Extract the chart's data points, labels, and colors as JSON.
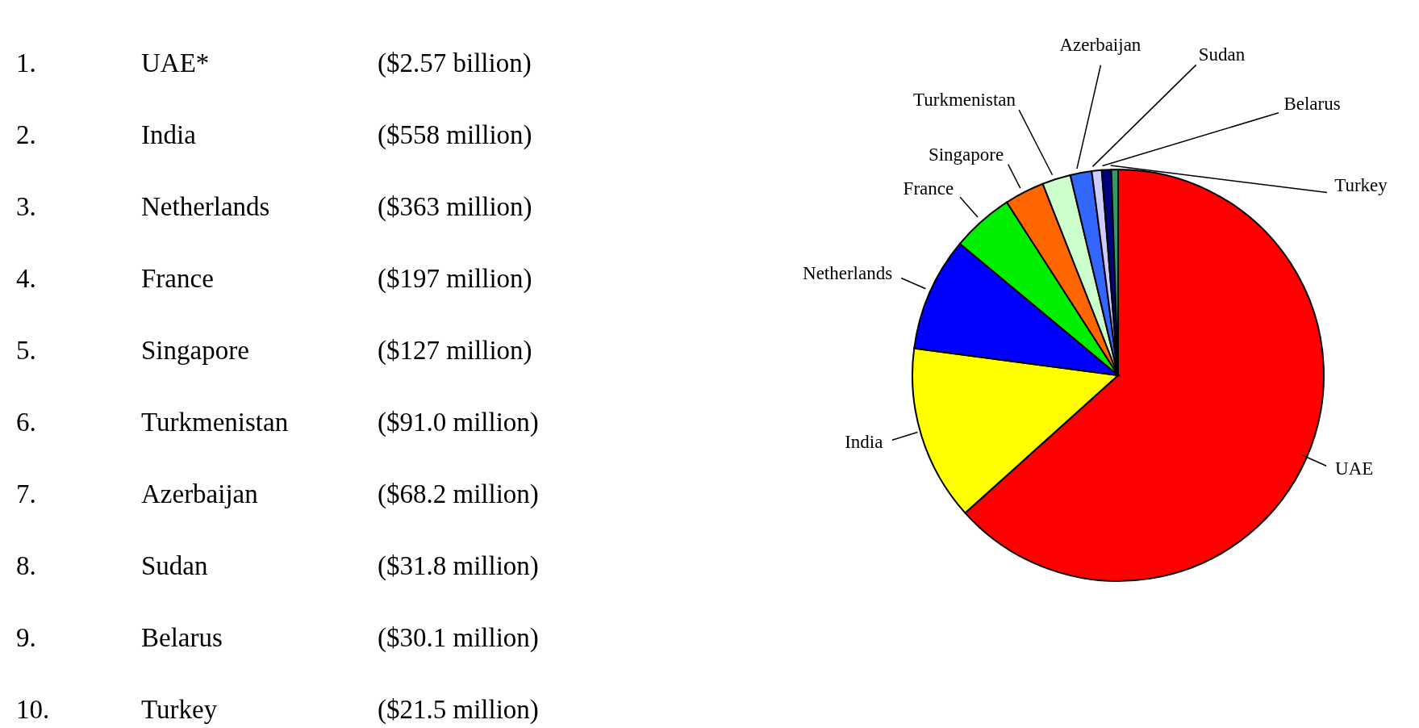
{
  "chart_data": {
    "type": "pie",
    "categories": [
      "UAE",
      "India",
      "Netherlands",
      "France",
      "Singapore",
      "Turkmenistan",
      "Azerbaijan",
      "Sudan",
      "Belarus",
      "Turkey"
    ],
    "values": [
      63.34,
      13.75,
      8.95,
      4.86,
      3.13,
      2.24,
      1.68,
      0.78,
      0.74,
      0.53
    ],
    "colors": [
      "#ff0000",
      "#ffff00",
      "#0000ff",
      "#00ee00",
      "#ff6600",
      "#ccffcc",
      "#3366ff",
      "#ccccff",
      "#000080",
      "#339966"
    ],
    "annotations": [
      "1.",
      "UAE*",
      "($2.57 billion)",
      "2.",
      "India",
      "($558 million)",
      "3.",
      "Netherlands",
      "($363 million)",
      "4.",
      "France",
      "($197 million)",
      "5.",
      "Singapore",
      "($127 million)",
      "6.",
      "Turkmenistan",
      "($91.0 million)",
      "7.",
      "Azerbaijan",
      "($68.2 million)",
      "8.",
      "Sudan",
      "($31.8 million)",
      "9.",
      "Belarus",
      "($30.1 million)",
      "10.",
      "Turkey",
      "($21.5 million)"
    ]
  }
}
